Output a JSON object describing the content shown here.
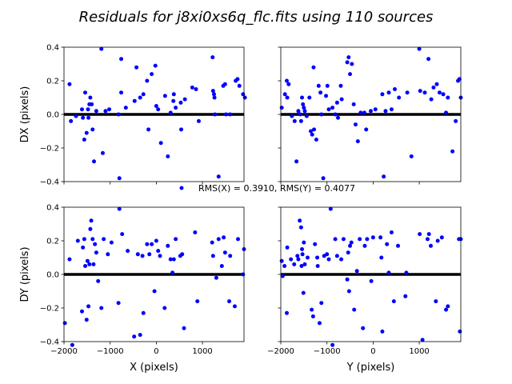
{
  "figure": {
    "title": "Residuals for j8xi0xs6q_flc.fits using 110 sources",
    "legend_label": "RMS(X) = 0.3910, RMS(Y) = 0.4077",
    "point_color": "#0000ff",
    "zero_line_color": "#000000"
  },
  "chart_data": [
    {
      "type": "scatter",
      "panel": "top-left",
      "xlabel": "",
      "ylabel": "DX (pixels)",
      "xlim": [
        -2000,
        1900
      ],
      "ylim": [
        -0.4,
        0.4
      ],
      "xticks": [
        -2000,
        -1000,
        0,
        1000
      ],
      "yticks": [
        -0.4,
        -0.2,
        0.0,
        0.2,
        0.4
      ],
      "x": [
        -1880,
        -1850,
        -1740,
        -1610,
        -1590,
        -1560,
        -1540,
        -1510,
        -1480,
        -1470,
        -1450,
        -1430,
        -1400,
        -1380,
        -1350,
        -1300,
        -1190,
        -1160,
        -1100,
        -1020,
        -820,
        -800,
        -760,
        -760,
        -660,
        -470,
        -430,
        -350,
        -280,
        -200,
        -170,
        -100,
        -20,
        0,
        40,
        100,
        190,
        250,
        310,
        370,
        380,
        420,
        530,
        540,
        620,
        780,
        860,
        920,
        1220,
        1230,
        1250,
        1260,
        1270,
        1350,
        1450,
        1490,
        1510,
        1600,
        1720,
        1760,
        1800,
        1880,
        1920
      ],
      "y": [
        0.18,
        -0.04,
        -0.01,
        0.03,
        -0.02,
        -0.15,
        0.13,
        -0.11,
        0.03,
        -0.02,
        0.06,
        0.1,
        0.06,
        -0.09,
        -0.28,
        0.02,
        0.39,
        -0.23,
        0.02,
        0.03,
        0.0,
        -0.38,
        0.33,
        0.13,
        0.04,
        0.08,
        0.28,
        0.1,
        0.12,
        0.2,
        -0.09,
        0.24,
        0.29,
        0.05,
        0.03,
        -0.17,
        0.11,
        -0.25,
        0.01,
        0.08,
        0.12,
        0.04,
        0.07,
        -0.09,
        0.09,
        0.16,
        0.15,
        -0.04,
        0.34,
        0.14,
        0.12,
        0.1,
        0.0,
        -0.37,
        0.17,
        0.18,
        0.0,
        0.0,
        0.2,
        0.21,
        0.17,
        0.12,
        0.1
      ]
    },
    {
      "type": "scatter",
      "panel": "top-right",
      "xlabel": "",
      "ylabel": "",
      "xlim": [
        -2000,
        1900
      ],
      "ylim": [
        -0.4,
        0.4
      ],
      "xticks": [
        -2000,
        -1000,
        0,
        1000
      ],
      "yticks": [
        -0.4,
        -0.2,
        0.0,
        0.2,
        0.4
      ],
      "x": [
        -1980,
        -1910,
        -1870,
        -1860,
        -1830,
        -1760,
        -1700,
        -1660,
        -1620,
        -1580,
        -1560,
        -1540,
        -1520,
        -1500,
        -1480,
        -1440,
        -1380,
        -1350,
        -1320,
        -1290,
        -1280,
        -1230,
        -1180,
        -1140,
        -1120,
        -1080,
        -1020,
        -990,
        -960,
        -880,
        -820,
        -780,
        -760,
        -700,
        -680,
        -560,
        -530,
        -500,
        -460,
        -420,
        -380,
        -330,
        -270,
        -190,
        -150,
        -50,
        50,
        200,
        230,
        270,
        340,
        400,
        470,
        560,
        740,
        830,
        1000,
        1020,
        1120,
        1200,
        1260,
        1310,
        1380,
        1440,
        1520,
        1580,
        1620,
        1720,
        1790,
        1840,
        1870,
        1900
      ],
      "y": [
        0.04,
        0.12,
        0.2,
        0.1,
        0.18,
        -0.01,
        -0.04,
        -0.28,
        0.02,
        0.0,
        -0.04,
        0.1,
        0.06,
        0.04,
        0.02,
        -0.01,
        0.1,
        -0.1,
        -0.12,
        0.28,
        -0.09,
        -0.15,
        0.17,
        0.13,
        0.0,
        -0.38,
        0.11,
        0.17,
        0.03,
        0.04,
        0.0,
        0.07,
        -0.02,
        0.17,
        0.09,
        0.31,
        0.34,
        0.24,
        0.3,
        0.06,
        -0.06,
        -0.16,
        0.01,
        0.01,
        -0.09,
        0.02,
        0.03,
        0.12,
        -0.37,
        0.02,
        0.13,
        0.03,
        0.15,
        0.1,
        0.13,
        -0.25,
        0.39,
        0.14,
        0.13,
        0.33,
        0.09,
        0.16,
        0.18,
        0.13,
        0.12,
        0.01,
        0.1,
        -0.22,
        -0.04,
        0.2,
        0.21,
        0.1
      ]
    },
    {
      "type": "scatter",
      "panel": "bottom-left",
      "xlabel": "X (pixels)",
      "ylabel": "DY (pixels)",
      "xlim": [
        -2000,
        1900
      ],
      "ylim": [
        -0.4,
        0.4
      ],
      "xticks": [
        -2000,
        -1000,
        0,
        1000
      ],
      "yticks": [
        -0.4,
        -0.2,
        0.0,
        0.2,
        0.4
      ],
      "x": [
        -1980,
        -1880,
        -1820,
        -1700,
        -1610,
        -1590,
        -1560,
        -1540,
        -1510,
        -1490,
        -1470,
        -1450,
        -1430,
        -1410,
        -1380,
        -1360,
        -1330,
        -1300,
        -1260,
        -1190,
        -1140,
        -1050,
        -970,
        -820,
        -800,
        -740,
        -620,
        -480,
        -400,
        -350,
        -300,
        -280,
        -200,
        -150,
        -100,
        -40,
        0,
        40,
        80,
        180,
        250,
        310,
        350,
        380,
        420,
        520,
        560,
        600,
        840,
        890,
        1210,
        1230,
        1300,
        1350,
        1420,
        1460,
        1490,
        1580,
        1600,
        1700,
        1770,
        1880,
        1900
      ],
      "y": [
        -0.29,
        0.09,
        -0.42,
        0.2,
        -0.22,
        0.16,
        0.21,
        0.05,
        -0.27,
        0.08,
        -0.19,
        0.06,
        0.27,
        0.32,
        0.21,
        0.06,
        0.18,
        0.13,
        -0.04,
        -0.2,
        0.21,
        0.12,
        0.19,
        -0.17,
        0.39,
        0.24,
        0.14,
        -0.37,
        0.12,
        -0.36,
        0.11,
        -0.23,
        0.18,
        0.12,
        0.18,
        -0.1,
        0.2,
        0.14,
        0.11,
        -0.2,
        0.17,
        0.09,
        0.01,
        0.09,
        0.21,
        0.11,
        0.12,
        -0.32,
        0.25,
        -0.16,
        0.19,
        0.11,
        -0.02,
        0.21,
        0.05,
        0.22,
        0.13,
        -0.16,
        0.11,
        -0.19,
        0.21,
        0.0,
        0.15
      ]
    },
    {
      "type": "scatter",
      "panel": "bottom-right",
      "xlabel": "Y (pixels)",
      "ylabel": "",
      "xlim": [
        -2000,
        1900
      ],
      "ylim": [
        -0.4,
        0.4
      ],
      "xticks": [
        -2000,
        -1000,
        0,
        1000
      ],
      "yticks": [
        -0.4,
        -0.2,
        0.0,
        0.2,
        0.4
      ],
      "x": [
        -1980,
        -1960,
        -1920,
        -1870,
        -1860,
        -1780,
        -1710,
        -1640,
        -1620,
        -1590,
        -1560,
        -1550,
        -1540,
        -1530,
        -1510,
        -1500,
        -1480,
        -1420,
        -1330,
        -1300,
        -1260,
        -1210,
        -1200,
        -1160,
        -1120,
        -1060,
        -1000,
        -960,
        -920,
        -880,
        -820,
        -780,
        -690,
        -640,
        -560,
        -540,
        -520,
        -500,
        -470,
        -410,
        -350,
        -290,
        -220,
        -180,
        -130,
        -40,
        0,
        160,
        180,
        200,
        300,
        340,
        400,
        450,
        540,
        700,
        720,
        1010,
        1070,
        1180,
        1210,
        1250,
        1360,
        1400,
        1490,
        1580,
        1620,
        1860,
        1880,
        1900
      ],
      "y": [
        0.08,
        -0.01,
        0.05,
        -0.23,
        0.16,
        0.09,
        0.06,
        0.11,
        0.09,
        0.32,
        0.28,
        0.05,
        0.15,
        0.12,
        -0.11,
        0.19,
        0.06,
        0.1,
        -0.21,
        -0.25,
        0.18,
        0.1,
        0.05,
        -0.29,
        -0.17,
        0.11,
        0.12,
        0.09,
        0.39,
        -0.42,
        0.21,
        0.11,
        0.09,
        0.21,
        -0.03,
        0.13,
        -0.1,
        0.17,
        0.19,
        -0.21,
        0.02,
        0.21,
        -0.32,
        0.17,
        0.21,
        -0.04,
        0.22,
        0.22,
        0.1,
        -0.34,
        0.18,
        0.01,
        0.25,
        -0.16,
        0.17,
        -0.13,
        0.01,
        0.24,
        -0.39,
        0.21,
        0.24,
        0.17,
        -0.16,
        0.2,
        0.22,
        -0.21,
        -0.19,
        0.21,
        -0.34,
        0.21
      ]
    }
  ]
}
